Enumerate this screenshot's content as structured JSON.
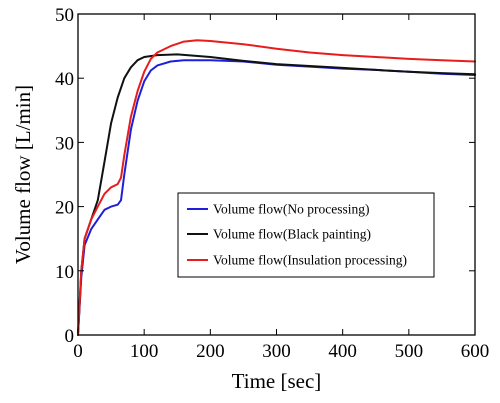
{
  "chart_data": {
    "type": "line",
    "xlabel": "Time [sec]",
    "ylabel": "Volume flow [L/min]",
    "xlim": [
      0,
      600
    ],
    "ylim": [
      0,
      50
    ],
    "xticks": [
      0,
      100,
      200,
      300,
      400,
      500,
      600
    ],
    "yticks": [
      0,
      10,
      20,
      30,
      40,
      50
    ],
    "grid": false,
    "legend_position": "center-right",
    "series": [
      {
        "name": "Volume flow(No processing)",
        "color": "#1f1fd9",
        "points": [
          [
            0,
            0
          ],
          [
            5,
            9
          ],
          [
            10,
            14
          ],
          [
            20,
            16.5
          ],
          [
            30,
            18
          ],
          [
            40,
            19.5
          ],
          [
            50,
            20
          ],
          [
            60,
            20.3
          ],
          [
            65,
            21
          ],
          [
            70,
            25
          ],
          [
            80,
            32
          ],
          [
            90,
            36.5
          ],
          [
            100,
            39.5
          ],
          [
            110,
            41.2
          ],
          [
            120,
            42
          ],
          [
            140,
            42.6
          ],
          [
            160,
            42.8
          ],
          [
            200,
            42.8
          ],
          [
            250,
            42.6
          ],
          [
            300,
            42.1
          ],
          [
            350,
            41.8
          ],
          [
            400,
            41.5
          ],
          [
            450,
            41.3
          ],
          [
            500,
            41
          ],
          [
            550,
            40.7
          ],
          [
            600,
            40.5
          ]
        ]
      },
      {
        "name": "Volume flow(Black painting)",
        "color": "#111111",
        "points": [
          [
            0,
            0
          ],
          [
            5,
            10
          ],
          [
            10,
            15
          ],
          [
            20,
            18
          ],
          [
            30,
            21
          ],
          [
            40,
            27
          ],
          [
            50,
            33
          ],
          [
            60,
            37
          ],
          [
            70,
            40
          ],
          [
            80,
            41.7
          ],
          [
            90,
            42.8
          ],
          [
            100,
            43.3
          ],
          [
            120,
            43.6
          ],
          [
            150,
            43.7
          ],
          [
            200,
            43.3
          ],
          [
            250,
            42.7
          ],
          [
            300,
            42.2
          ],
          [
            350,
            41.9
          ],
          [
            400,
            41.6
          ],
          [
            450,
            41.3
          ],
          [
            500,
            41
          ],
          [
            550,
            40.8
          ],
          [
            600,
            40.6
          ]
        ]
      },
      {
        "name": "Volume flow(Insulation processing)",
        "color": "#e81c1c",
        "points": [
          [
            0,
            0
          ],
          [
            5,
            10
          ],
          [
            10,
            15
          ],
          [
            20,
            18
          ],
          [
            30,
            20
          ],
          [
            40,
            22
          ],
          [
            50,
            23
          ],
          [
            60,
            23.5
          ],
          [
            65,
            24.5
          ],
          [
            70,
            28
          ],
          [
            80,
            34
          ],
          [
            90,
            38
          ],
          [
            100,
            41
          ],
          [
            110,
            43
          ],
          [
            120,
            44
          ],
          [
            140,
            45
          ],
          [
            160,
            45.7
          ],
          [
            180,
            45.9
          ],
          [
            200,
            45.8
          ],
          [
            250,
            45.3
          ],
          [
            300,
            44.6
          ],
          [
            350,
            44
          ],
          [
            400,
            43.6
          ],
          [
            450,
            43.3
          ],
          [
            500,
            43
          ],
          [
            550,
            42.8
          ],
          [
            600,
            42.6
          ]
        ]
      }
    ]
  }
}
